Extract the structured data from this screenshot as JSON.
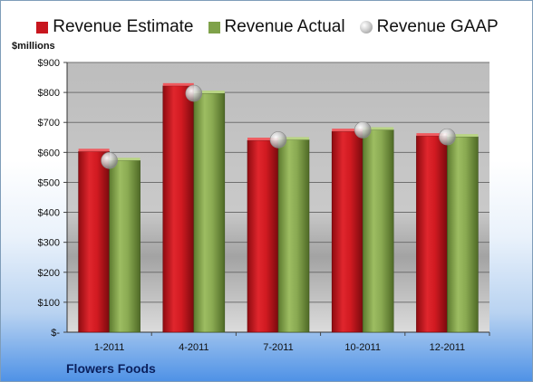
{
  "unit_label": "$millions",
  "company": "Flowers Foods",
  "colors": {
    "estimate": "#c8161e",
    "actual": "#7fa24a",
    "gaap": "#b0b0b0"
  },
  "chart_data": {
    "type": "bar",
    "title": "",
    "xlabel": "",
    "ylabel": "$millions",
    "categories": [
      "1-2011",
      "4-2011",
      "7-2011",
      "10-2011",
      "12-2011"
    ],
    "ylim": [
      0,
      900
    ],
    "y_ticks": [
      0,
      100,
      200,
      300,
      400,
      500,
      600,
      700,
      800,
      900
    ],
    "y_tick_labels": [
      "$-",
      "$100",
      "$200",
      "$300",
      "$400",
      "$500",
      "$600",
      "$700",
      "$800",
      "$900"
    ],
    "grid": true,
    "legend_position": "top",
    "series": [
      {
        "name": "Revenue Estimate",
        "kind": "bar",
        "values": [
          603,
          822,
          640,
          670,
          655
        ]
      },
      {
        "name": "Revenue Actual",
        "kind": "bar",
        "values": [
          573,
          797,
          642,
          675,
          652
        ]
      },
      {
        "name": "Revenue GAAP",
        "kind": "marker",
        "values": [
          573,
          797,
          642,
          675,
          652
        ]
      }
    ]
  }
}
